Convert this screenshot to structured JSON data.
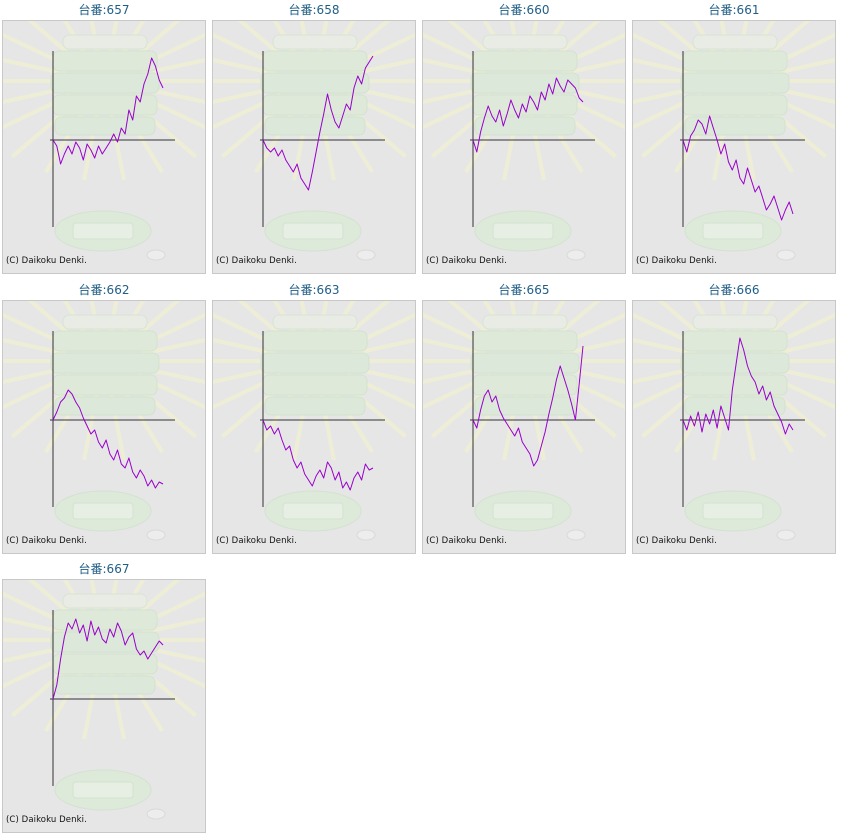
{
  "copyright": "(C) Daikoku Denki.",
  "accent_color": "#1f5e87",
  "line_color": "#9900cc",
  "machines": [
    {
      "title": "台番:657",
      "y": [
        0,
        -6,
        -24,
        -14,
        -6,
        -14,
        -2,
        -8,
        -20,
        -4,
        -10,
        -18,
        -6,
        -14,
        -8,
        -2,
        6,
        -2,
        12,
        6,
        30,
        20,
        44,
        38,
        56,
        66,
        82,
        74,
        60,
        52
      ]
    },
    {
      "title": "台番:658",
      "y": [
        0,
        -8,
        -12,
        -8,
        -16,
        -10,
        -20,
        -26,
        -32,
        -24,
        -38,
        -44,
        -50,
        -32,
        -12,
        8,
        26,
        46,
        30,
        18,
        12,
        24,
        36,
        30,
        52,
        64,
        56,
        72,
        78,
        84
      ]
    },
    {
      "title": "台番:660",
      "y": [
        0,
        -12,
        8,
        22,
        34,
        24,
        18,
        30,
        14,
        26,
        40,
        30,
        22,
        36,
        28,
        44,
        38,
        30,
        48,
        40,
        56,
        46,
        62,
        54,
        48,
        60,
        56,
        52,
        42,
        38
      ]
    },
    {
      "title": "台番:661",
      "y": [
        0,
        -12,
        4,
        10,
        20,
        16,
        6,
        24,
        12,
        0,
        -14,
        -4,
        -22,
        -30,
        -20,
        -38,
        -44,
        -28,
        -40,
        -52,
        -46,
        -58,
        -70,
        -64,
        -56,
        -68,
        -80,
        -70,
        -62,
        -74
      ]
    },
    {
      "title": "台番:662",
      "y": [
        0,
        8,
        18,
        22,
        30,
        26,
        18,
        12,
        2,
        -6,
        -14,
        -10,
        -22,
        -28,
        -20,
        -34,
        -40,
        -30,
        -44,
        -48,
        -38,
        -52,
        -58,
        -50,
        -56,
        -66,
        -60,
        -68,
        -62,
        -64
      ]
    },
    {
      "title": "台番:663",
      "y": [
        0,
        -10,
        -6,
        -14,
        -8,
        -20,
        -30,
        -26,
        -40,
        -48,
        -42,
        -54,
        -60,
        -66,
        -56,
        -50,
        -58,
        -42,
        -48,
        -60,
        -52,
        -68,
        -62,
        -70,
        -58,
        -52,
        -60,
        -44,
        -50,
        -48
      ]
    },
    {
      "title": "台番:665",
      "y": [
        0,
        -8,
        10,
        24,
        30,
        18,
        24,
        10,
        2,
        -4,
        -10,
        -16,
        -8,
        -22,
        -28,
        -34,
        -46,
        -40,
        -26,
        -12,
        6,
        22,
        40,
        54,
        42,
        30,
        16,
        0,
        36,
        74
      ]
    },
    {
      "title": "台番:666",
      "y": [
        0,
        -10,
        4,
        -6,
        8,
        -12,
        6,
        -4,
        10,
        -8,
        14,
        2,
        -10,
        30,
        56,
        82,
        70,
        54,
        44,
        38,
        26,
        34,
        20,
        28,
        14,
        6,
        -2,
        -14,
        -4,
        -10
      ]
    },
    {
      "title": "台番:667",
      "y": [
        0,
        14,
        40,
        62,
        76,
        70,
        80,
        66,
        74,
        58,
        78,
        64,
        72,
        60,
        56,
        70,
        62,
        76,
        68,
        54,
        62,
        66,
        50,
        44,
        48,
        40,
        46,
        52,
        58,
        54
      ]
    }
  ]
}
